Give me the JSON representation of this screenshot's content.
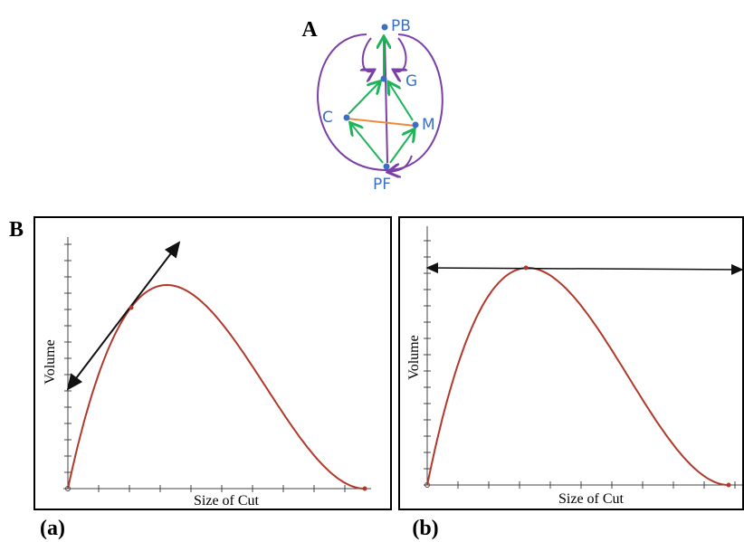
{
  "panel_a": {
    "label": "A",
    "nodes": [
      {
        "label": "PB"
      },
      {
        "label": "G"
      },
      {
        "label": "C"
      },
      {
        "label": "M"
      },
      {
        "label": "PF"
      }
    ]
  },
  "panel_b": {
    "label": "B",
    "plots": [
      {
        "y_label": "Volume",
        "x_label": "Size of Cut",
        "caption": "(a)"
      },
      {
        "y_label": "Volume",
        "x_label": "Size of Cut",
        "caption": "(b)"
      }
    ]
  }
}
